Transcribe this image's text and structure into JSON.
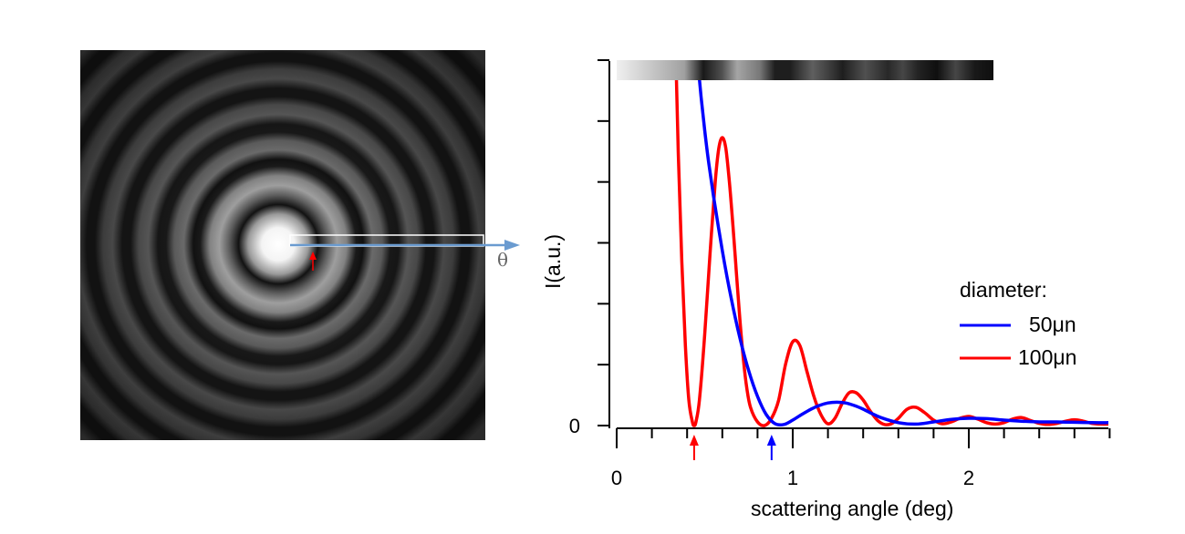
{
  "figure": {
    "theta_label": "θ"
  },
  "chart_data": {
    "type": "line",
    "xlabel": "scattering angle (deg)",
    "ylabel": "I(a.u.)",
    "xlim": [
      0,
      2.8
    ],
    "x_ticks": [
      {
        "value": 0,
        "label": "0"
      },
      {
        "value": 1,
        "label": "1"
      },
      {
        "value": 2,
        "label": "2"
      }
    ],
    "y_ticks": [
      {
        "value": 0,
        "label": "0"
      }
    ],
    "legend": {
      "title": "diameter:",
      "placement": "right",
      "entries": [
        "50μn",
        "100μn"
      ]
    },
    "series": [
      {
        "name": "50μn",
        "color": "#0000ff",
        "x": [
          0.44,
          0.46,
          0.48,
          0.5,
          0.52,
          0.55,
          0.6,
          0.65,
          0.7,
          0.75,
          0.8,
          0.85,
          0.9,
          0.95,
          1.0,
          1.05,
          1.1,
          1.15,
          1.2,
          1.25,
          1.3,
          1.35,
          1.4,
          1.45,
          1.5,
          1.6,
          1.7,
          1.8,
          1.9,
          2.0,
          2.1,
          2.2,
          2.3,
          2.4,
          2.5,
          2.6,
          2.7,
          2.8
        ],
        "y": [
          1.12,
          1.0,
          0.9,
          0.81,
          0.73,
          0.63,
          0.48,
          0.35,
          0.24,
          0.15,
          0.08,
          0.03,
          0.005,
          0.003,
          0.015,
          0.03,
          0.044,
          0.055,
          0.062,
          0.064,
          0.062,
          0.055,
          0.045,
          0.033,
          0.022,
          0.008,
          0.004,
          0.01,
          0.017,
          0.02,
          0.019,
          0.015,
          0.012,
          0.01,
          0.01,
          0.009,
          0.008,
          0.008
        ]
      },
      {
        "name": "100μn",
        "color": "#ff0000",
        "x": [
          0.33,
          0.35,
          0.37,
          0.39,
          0.41,
          0.43,
          0.44,
          0.45,
          0.47,
          0.5,
          0.53,
          0.56,
          0.58,
          0.6,
          0.62,
          0.64,
          0.66,
          0.68,
          0.7,
          0.72,
          0.74,
          0.76,
          0.8,
          0.84,
          0.88,
          0.92,
          0.96,
          1.0,
          1.04,
          1.08,
          1.12,
          1.16,
          1.2,
          1.24,
          1.28,
          1.32,
          1.36,
          1.4,
          1.44,
          1.48,
          1.52,
          1.56,
          1.6,
          1.65,
          1.7,
          1.75,
          1.8,
          1.85,
          1.9,
          1.95,
          2.0,
          2.05,
          2.1,
          2.15,
          2.2,
          2.25,
          2.3,
          2.35,
          2.4,
          2.45,
          2.5,
          2.55,
          2.6,
          2.65,
          2.7,
          2.75,
          2.8
        ],
        "y": [
          1.14,
          0.75,
          0.45,
          0.22,
          0.07,
          0.01,
          0.0,
          0.01,
          0.07,
          0.25,
          0.47,
          0.67,
          0.76,
          0.79,
          0.76,
          0.67,
          0.55,
          0.42,
          0.29,
          0.18,
          0.1,
          0.05,
          0.01,
          0.0,
          0.02,
          0.07,
          0.17,
          0.23,
          0.22,
          0.15,
          0.08,
          0.03,
          0.005,
          0.02,
          0.06,
          0.09,
          0.09,
          0.07,
          0.04,
          0.015,
          0.003,
          0.005,
          0.02,
          0.045,
          0.05,
          0.035,
          0.015,
          0.005,
          0.01,
          0.02,
          0.025,
          0.018,
          0.008,
          0.004,
          0.008,
          0.018,
          0.022,
          0.014,
          0.006,
          0.003,
          0.006,
          0.012,
          0.016,
          0.012,
          0.006,
          0.004,
          0.004
        ]
      }
    ],
    "markers": [
      {
        "name": "first-minimum-100",
        "x": 0.44,
        "color": "#ff0000"
      },
      {
        "name": "first-minimum-50",
        "x": 0.88,
        "color": "#0000ff"
      }
    ],
    "profile_strip": {
      "stops": [
        {
          "x": 0.0,
          "gray": 240
        },
        {
          "x": 0.18,
          "gray": 160
        },
        {
          "x": 0.23,
          "gray": 25
        },
        {
          "x": 0.28,
          "gray": 80
        },
        {
          "x": 0.32,
          "gray": 165
        },
        {
          "x": 0.38,
          "gray": 120
        },
        {
          "x": 0.42,
          "gray": 30
        },
        {
          "x": 0.46,
          "gray": 30
        },
        {
          "x": 0.52,
          "gray": 95
        },
        {
          "x": 0.56,
          "gray": 65
        },
        {
          "x": 0.6,
          "gray": 30
        },
        {
          "x": 0.66,
          "gray": 80
        },
        {
          "x": 0.72,
          "gray": 40
        },
        {
          "x": 0.76,
          "gray": 70
        },
        {
          "x": 0.8,
          "gray": 35
        },
        {
          "x": 0.85,
          "gray": 15
        },
        {
          "x": 0.9,
          "gray": 70
        },
        {
          "x": 0.95,
          "gray": 25
        },
        {
          "x": 1.0,
          "gray": 15
        }
      ]
    }
  }
}
